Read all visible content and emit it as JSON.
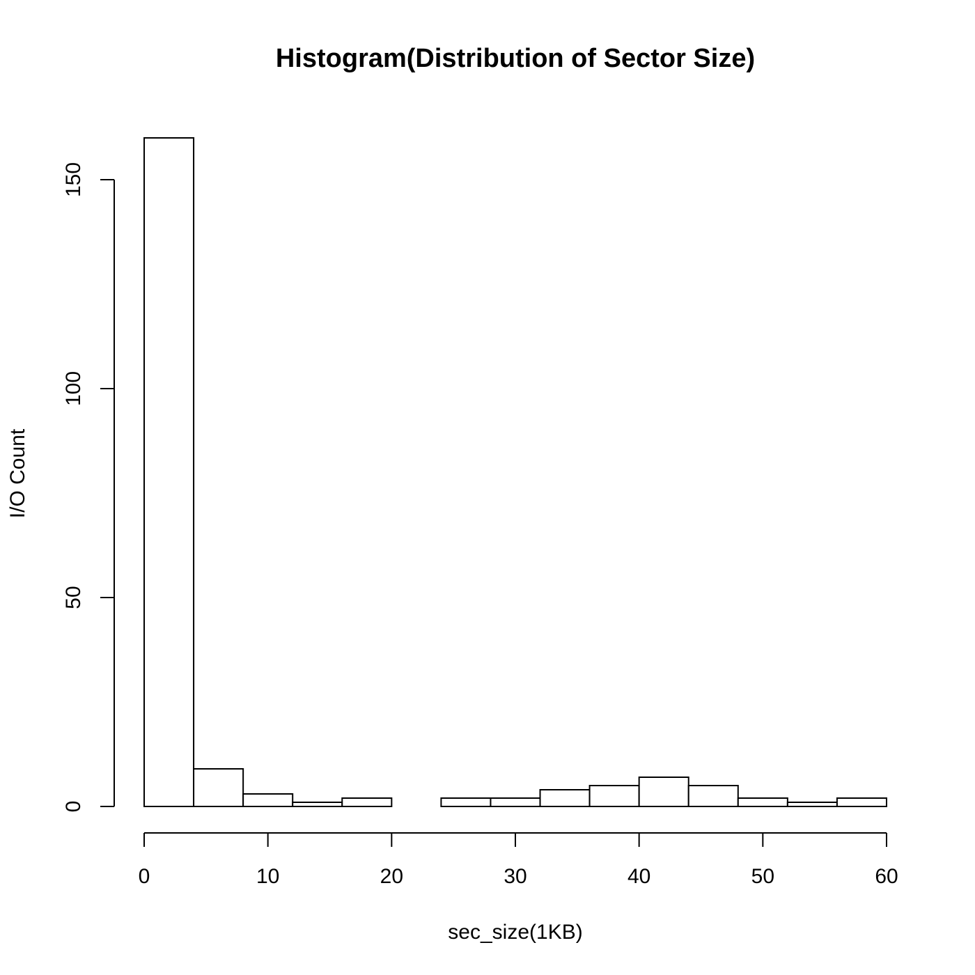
{
  "chart_data": {
    "type": "bar",
    "title": "Histogram(Distribution of Sector Size)",
    "xlabel": "sec_size(1KB)",
    "ylabel": "I/O Count",
    "bin_edges": [
      0,
      4,
      8,
      12,
      16,
      20,
      24,
      28,
      32,
      36,
      40,
      44,
      48,
      52,
      56,
      60
    ],
    "values": [
      160,
      9,
      3,
      1,
      2,
      0,
      2,
      2,
      4,
      5,
      7,
      5,
      2,
      1,
      2
    ],
    "xlim": [
      0,
      60
    ],
    "ylim": [
      0,
      160
    ],
    "xticks": [
      0,
      10,
      20,
      30,
      40,
      50,
      60
    ],
    "yticks": [
      0,
      50,
      100,
      150
    ],
    "grid": false,
    "legend": "none"
  }
}
